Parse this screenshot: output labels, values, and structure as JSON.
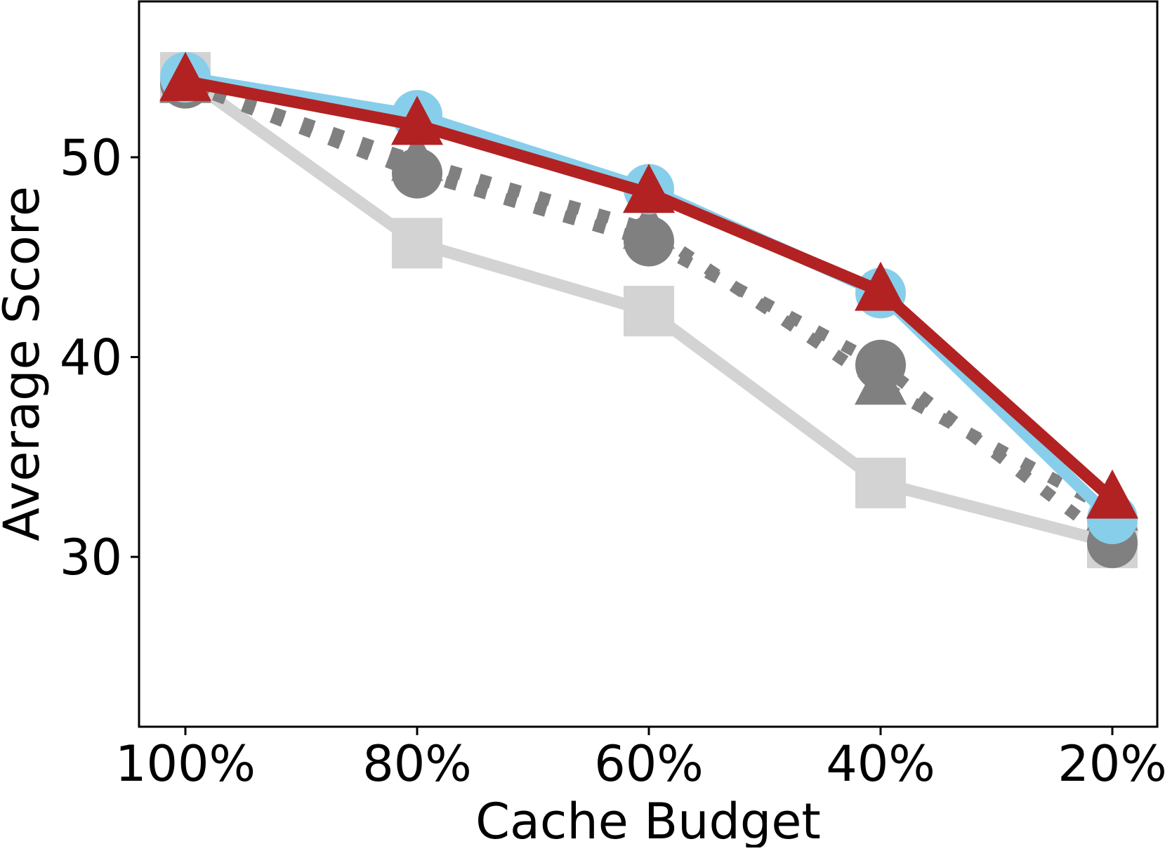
{
  "chart_data": {
    "type": "line",
    "xlabel": "Cache Budget",
    "ylabel": "Average Score",
    "categories": [
      "100%",
      "80%",
      "60%",
      "40%",
      "20%"
    ],
    "ylim": [
      21.5,
      57.8
    ],
    "yticks": [
      30,
      40,
      50
    ],
    "grid": false,
    "legend": "none",
    "series": [
      {
        "id": "s-light-square",
        "color": "#d3d3d3",
        "marker": "square",
        "linestyle": "solid",
        "values": [
          54.0,
          45.7,
          42.3,
          33.7,
          30.7
        ]
      },
      {
        "id": "s-gray-dotted-circle",
        "color": "#808080",
        "marker": "circle",
        "linestyle": "dotted",
        "values": [
          53.7,
          49.2,
          45.8,
          39.6,
          30.7
        ]
      },
      {
        "id": "s-gray-dotted-triangle",
        "color": "#808080",
        "marker": "triangle",
        "linestyle": "dotted",
        "values": [
          53.7,
          49.8,
          46.4,
          38.6,
          32.3
        ]
      },
      {
        "id": "s-blue-circle",
        "color": "#87ceeb",
        "marker": "circle",
        "linestyle": "solid",
        "values": [
          54.0,
          52.1,
          48.4,
          43.2,
          31.9
        ]
      },
      {
        "id": "s-red-triangle",
        "color": "#b22222",
        "marker": "triangle",
        "linestyle": "solid",
        "values": [
          53.8,
          51.6,
          48.2,
          43.3,
          32.9
        ]
      }
    ]
  }
}
